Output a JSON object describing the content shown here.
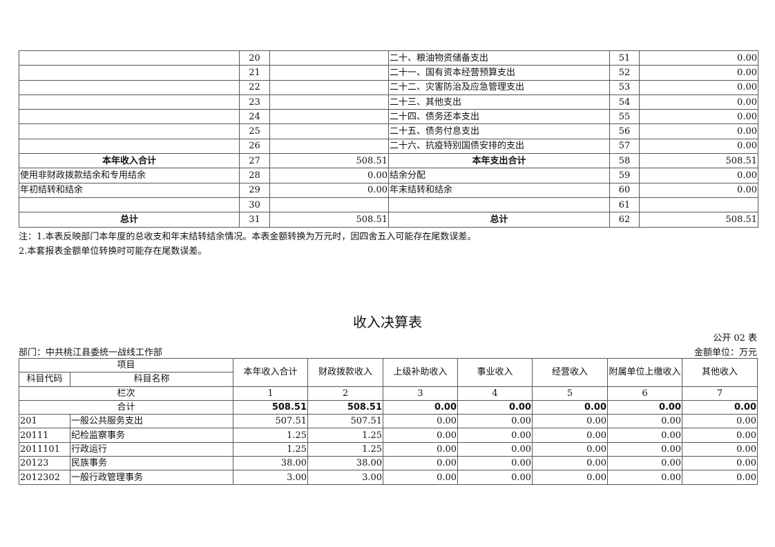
{
  "top_table": {
    "rows": [
      {
        "left": "",
        "ln": "20",
        "lv": "",
        "right": "二十、粮油物资储备支出",
        "rn": "51",
        "rv": "0.00"
      },
      {
        "left": "",
        "ln": "21",
        "lv": "",
        "right": "二十一、国有资本经营预算支出",
        "rn": "52",
        "rv": "0.00"
      },
      {
        "left": "",
        "ln": "22",
        "lv": "",
        "right": "二十二、灾害防治及应急管理支出",
        "rn": "53",
        "rv": "0.00"
      },
      {
        "left": "",
        "ln": "23",
        "lv": "",
        "right": "二十三、其他支出",
        "rn": "54",
        "rv": "0.00"
      },
      {
        "left": "",
        "ln": "24",
        "lv": "",
        "right": "二十四、债务还本支出",
        "rn": "55",
        "rv": "0.00"
      },
      {
        "left": "",
        "ln": "25",
        "lv": "",
        "right": "二十五、债务付息支出",
        "rn": "56",
        "rv": "0.00"
      },
      {
        "left": "",
        "ln": "26",
        "lv": "",
        "right": "二十六、抗疫特别国债安排的支出",
        "rn": "57",
        "rv": "0.00"
      },
      {
        "left": "本年收入合计",
        "ln": "27",
        "lv": "508.51",
        "right": "本年支出合计",
        "rn": "58",
        "rv": "508.51"
      },
      {
        "left": "使用非财政拨款结余和专用结余",
        "ln": "28",
        "lv": "0.00",
        "right": "结余分配",
        "rn": "59",
        "rv": "0.00"
      },
      {
        "left": "年初结转和结余",
        "ln": "29",
        "lv": "0.00",
        "right": "年末结转和结余",
        "rn": "60",
        "rv": "0.00"
      },
      {
        "left": "",
        "ln": "30",
        "lv": "",
        "right": "",
        "rn": "61",
        "rv": ""
      },
      {
        "left": "总计",
        "ln": "31",
        "lv": "508.51",
        "right": "总计",
        "rn": "62",
        "rv": "508.51"
      }
    ]
  },
  "notes": [
    "注：1.本表反映部门本年度的总收支和年末结转结余情况。本表金额转换为万元时，因四舍五入可能存在尾数误差。",
    "2.本套报表金额单位转换时可能存在尾数误差。"
  ],
  "income": {
    "title": "收入决算表",
    "code": "公开 02 表",
    "dept": "部门：中共桃江县委统一战线工作部",
    "unit": "金额单位：万元",
    "h_item": "项目",
    "h_code": "科目代码",
    "h_name": "科目名称",
    "cols": [
      "本年收入合计",
      "财政拨款收入",
      "上级补助收入",
      "事业收入",
      "经营收入",
      "附属单位上缴收入",
      "其他收入"
    ],
    "col_label": "栏次",
    "col_nums": [
      "1",
      "2",
      "3",
      "4",
      "5",
      "6",
      "7"
    ],
    "total_label": "合计",
    "totals": [
      "508.51",
      "508.51",
      "0.00",
      "0.00",
      "0.00",
      "0.00",
      "0.00"
    ],
    "rows": [
      {
        "code": "201",
        "name": "一般公共服务支出",
        "v": [
          "507.51",
          "507.51",
          "0.00",
          "0.00",
          "0.00",
          "0.00",
          "0.00"
        ]
      },
      {
        "code": "20111",
        "name": "纪检监察事务",
        "v": [
          "1.25",
          "1.25",
          "0.00",
          "0.00",
          "0.00",
          "0.00",
          "0.00"
        ]
      },
      {
        "code": "2011101",
        "name": "行政运行",
        "v": [
          "1.25",
          "1.25",
          "0.00",
          "0.00",
          "0.00",
          "0.00",
          "0.00"
        ]
      },
      {
        "code": "20123",
        "name": "民族事务",
        "v": [
          "38.00",
          "38.00",
          "0.00",
          "0.00",
          "0.00",
          "0.00",
          "0.00"
        ]
      },
      {
        "code": "2012302",
        "name": "一般行政管理事务",
        "v": [
          "3.00",
          "3.00",
          "0.00",
          "0.00",
          "0.00",
          "0.00",
          "0.00"
        ]
      }
    ]
  }
}
